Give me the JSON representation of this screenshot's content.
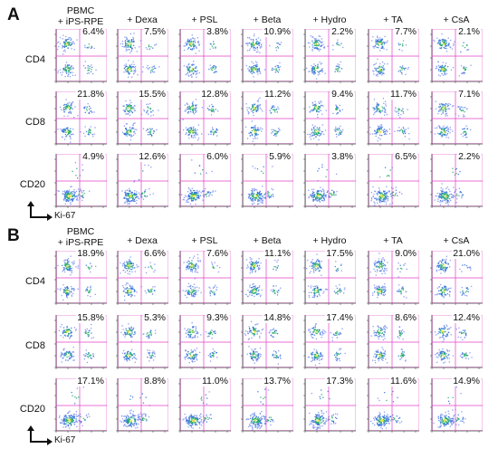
{
  "panels": [
    {
      "letter": "A",
      "columns": [
        "PBMC\n+ iPS-RPE",
        "+ Dexa",
        "+ PSL",
        "+ Beta",
        "+ Hydro",
        "+ TA",
        "+ CsA"
      ],
      "rows": [
        {
          "label": "CD4",
          "values": [
            "6.4%",
            "7.5%",
            "3.8%",
            "10.9%",
            "2.2%",
            "7.7%",
            "2.1%"
          ]
        },
        {
          "label": "CD8",
          "values": [
            "21.8%",
            "15.5%",
            "12.8%",
            "11.2%",
            "9.4%",
            "11.7%",
            "7.1%"
          ]
        },
        {
          "label": "CD20",
          "values": [
            "4.9%",
            "12.6%",
            "6.0%",
            "5.9%",
            "3.8%",
            "6.5%",
            "2.2%"
          ]
        }
      ],
      "x_axis": "Ki-67"
    },
    {
      "letter": "B",
      "columns": [
        "PBMC\n+ iPS-RPE",
        "+ Dexa",
        "+ PSL",
        "+ Beta",
        "+ Hydro",
        "+ TA",
        "+ CsA"
      ],
      "rows": [
        {
          "label": "CD4",
          "values": [
            "18.9%",
            "6.6%",
            "7.6%",
            "11.1%",
            "17.5%",
            "9.0%",
            "21.0%"
          ]
        },
        {
          "label": "CD8",
          "values": [
            "15.8%",
            "5.3%",
            "9.3%",
            "14.8%",
            "17.4%",
            "8.6%",
            "12.4%"
          ]
        },
        {
          "label": "CD20",
          "values": [
            "17.1%",
            "8.8%",
            "11.0%",
            "13.7%",
            "17.3%",
            "11.6%",
            "14.9%"
          ]
        }
      ],
      "x_axis": "Ki-67"
    }
  ],
  "colors": {
    "gate": "#e040c8",
    "axis": "#333333",
    "dots_low": "#7a8cf0",
    "dots_mid": "#2f6fd8",
    "dots_high": "#1fa86a",
    "dots_core": "#e8e030"
  }
}
